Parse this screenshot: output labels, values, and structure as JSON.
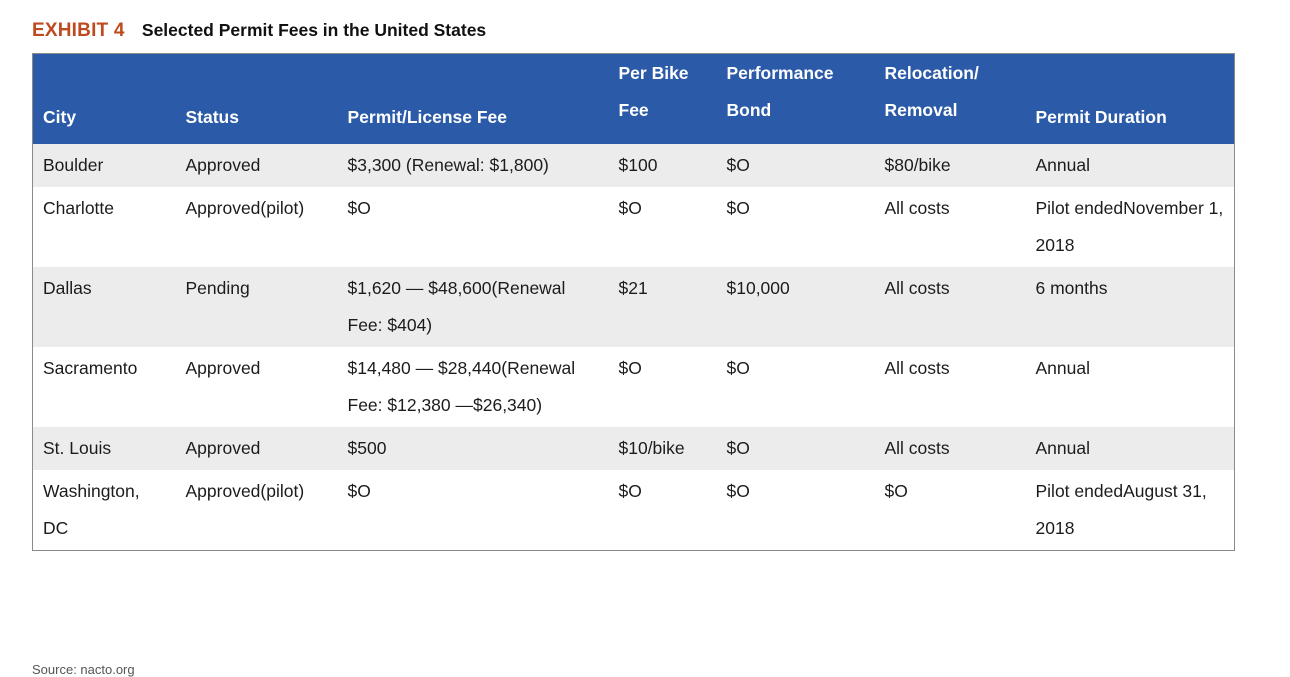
{
  "exhibit": {
    "label": "EXHIBIT 4",
    "title": "Selected Permit Fees in the United States"
  },
  "table": {
    "headers": [
      "City",
      "Status",
      "Permit/License Fee",
      "Per Bike Fee",
      "Performance Bond",
      "Relocation/ Removal",
      "Permit Duration"
    ],
    "rows": [
      [
        "Boulder",
        "Approved",
        "$3,300 (Renewal: $1,800)",
        "$100",
        "$O",
        "$80/bike",
        "Annual"
      ],
      [
        "Charlotte",
        "Approved(pilot)",
        "$O",
        "$O",
        "$O",
        "All costs",
        "Pilot endedNovember 1, 2018"
      ],
      [
        "Dallas",
        "Pending",
        "$1,620 — $48,600(Renewal Fee: $404)",
        "$21",
        "$10,000",
        "All costs",
        "6 months"
      ],
      [
        "Sacramento",
        "Approved",
        "$14,480 — $28,440(Renewal Fee: $12,380 —$26,340)",
        "$O",
        "$O",
        "All costs",
        "Annual"
      ],
      [
        "St. Louis",
        "Approved",
        "$500",
        "$10/bike",
        "$O",
        "All costs",
        "Annual"
      ],
      [
        "Washington, DC",
        "Approved(pilot)",
        "$O",
        "$O",
        "$O",
        "$O",
        "Pilot endedAugust 31, 2018"
      ]
    ]
  },
  "source": "Source: nacto.org"
}
